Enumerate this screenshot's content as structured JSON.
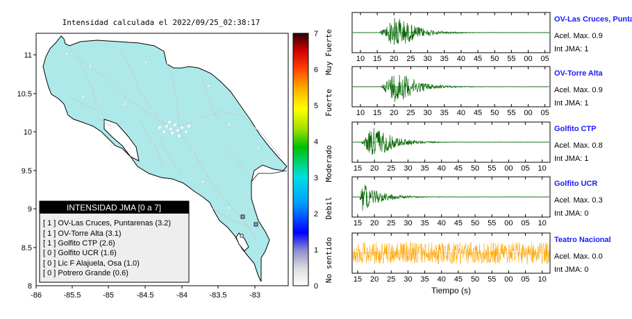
{
  "map": {
    "title": "Intensidad calculada el 2022/09/25_02:38:17",
    "x_ticks": [
      "-86",
      "-85.5",
      "-85",
      "-84.5",
      "-84",
      "-83.5",
      "-83"
    ],
    "y_ticks": [
      "11",
      "10.5",
      "10",
      "9.5",
      "9",
      "8.5",
      "8"
    ],
    "legend_title": "INTENSIDAD JMA [0 a 7]",
    "legend_items": [
      "[ 1 ]  OV-Las Cruces, Puntarenas (3.2)",
      "[ 1 ]  OV-Torre Alta (3.1)",
      "[ 1 ]  Golfito CTP (2.6)",
      "[ 0 ]  Golfito UCR (1.6)",
      "[ 0 ]  Lic F Alajuela, Osa (1.0)",
      "[ 0 ]  Potrero Grande (0.6)"
    ],
    "colors": {
      "land": "#aee9ea",
      "roads": "#cccccc",
      "border": "#000000"
    }
  },
  "colorbar": {
    "ticks": [
      "0",
      "1",
      "2",
      "3",
      "4",
      "5",
      "6",
      "7"
    ],
    "class_labels": [
      "No sentido",
      "Debil",
      "Moderado",
      "Fuerte",
      "Muy Fuerte"
    ]
  },
  "chart_data": [
    {
      "type": "line",
      "station": "OV-Las Cruces, Puntar",
      "accel_label": "Acel. Max. 0.9",
      "jma_label": "Int JMA: 1",
      "x_tick_labels": [
        "10",
        "15",
        "20",
        "25",
        "30",
        "35",
        "40",
        "45",
        "50",
        "55",
        "00",
        "05"
      ],
      "event_start_s": 15.5,
      "peak_s": 21,
      "amplitude": 0.9,
      "color": "#006400"
    },
    {
      "type": "line",
      "station": "OV-Torre Alta",
      "accel_label": "Acel. Max. 0.9",
      "jma_label": "Int JMA: 1",
      "x_tick_labels": [
        "10",
        "15",
        "20",
        "25",
        "30",
        "35",
        "40",
        "45",
        "50",
        "55",
        "00",
        "05"
      ],
      "event_start_s": 16,
      "peak_s": 21,
      "amplitude": 0.9,
      "color": "#006400"
    },
    {
      "type": "line",
      "station": "Golfito CTP",
      "accel_label": "Acel. Max. 0.8",
      "jma_label": "Int JMA: 1",
      "x_tick_labels": [
        "15",
        "20",
        "25",
        "30",
        "35",
        "40",
        "45",
        "50",
        "55",
        "00",
        "05",
        "10"
      ],
      "event_start_s": 16,
      "peak_s": 20,
      "amplitude": 0.8,
      "color": "#006400"
    },
    {
      "type": "line",
      "station": "Golfito UCR",
      "accel_label": "Acel. Max. 0.3",
      "jma_label": "Int JMA: 0",
      "x_tick_labels": [
        "15",
        "20",
        "25",
        "30",
        "35",
        "40",
        "45",
        "50",
        "55",
        "00",
        "05",
        "10"
      ],
      "event_start_s": 15.5,
      "peak_s": 16.5,
      "amplitude": 0.3,
      "color": "#006400"
    },
    {
      "type": "line",
      "station": "Teatro Nacional",
      "accel_label": "Acel. Max. 0.0",
      "jma_label": "Int JMA: 0",
      "x_tick_labels": [
        "15",
        "20",
        "25",
        "30",
        "35",
        "40",
        "45",
        "50",
        "55",
        "00",
        "05",
        "10"
      ],
      "event_start_s": null,
      "peak_s": null,
      "amplitude": 0.0,
      "noise": true,
      "color": "#ffa500",
      "xlabel": "Tiempo (s)"
    }
  ]
}
